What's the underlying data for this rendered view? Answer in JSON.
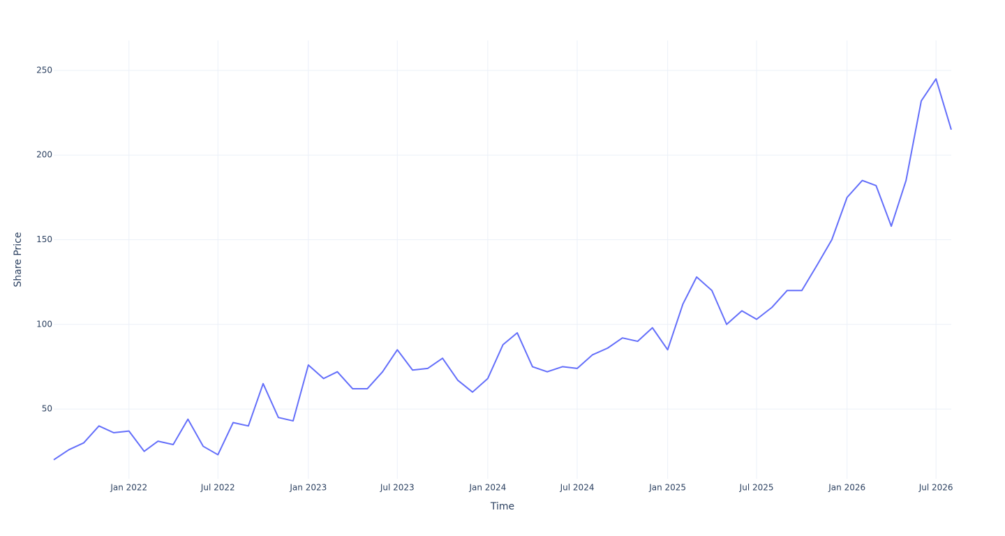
{
  "chart_data": {
    "type": "line",
    "xlabel": "Time",
    "ylabel": "Share Price",
    "x": [
      "2021-08",
      "2021-09",
      "2021-10",
      "2021-11",
      "2021-12",
      "2022-01",
      "2022-02",
      "2022-03",
      "2022-04",
      "2022-05",
      "2022-06",
      "2022-07",
      "2022-08",
      "2022-09",
      "2022-10",
      "2022-11",
      "2022-12",
      "2023-01",
      "2023-02",
      "2023-03",
      "2023-04",
      "2023-05",
      "2023-06",
      "2023-07",
      "2023-08",
      "2023-09",
      "2023-10",
      "2023-11",
      "2023-12",
      "2024-01",
      "2024-02",
      "2024-03",
      "2024-04",
      "2024-05",
      "2024-06",
      "2024-07",
      "2024-08",
      "2024-09",
      "2024-10",
      "2024-11",
      "2024-12",
      "2025-01",
      "2025-02",
      "2025-03",
      "2025-04",
      "2025-05",
      "2025-06",
      "2025-07",
      "2025-08",
      "2025-09",
      "2025-10",
      "2025-11",
      "2025-12",
      "2026-01",
      "2026-02",
      "2026-03",
      "2026-04",
      "2026-05",
      "2026-06",
      "2026-07",
      "2026-08"
    ],
    "series": [
      {
        "color": "#636efa",
        "values": [
          20,
          26,
          30,
          40,
          36,
          37,
          25,
          31,
          29,
          44,
          28,
          23,
          42,
          40,
          65,
          45,
          43,
          76,
          68,
          72,
          62,
          62,
          72,
          85,
          73,
          74,
          80,
          67,
          60,
          68,
          88,
          95,
          75,
          72,
          75,
          74,
          82,
          86,
          92,
          90,
          98,
          85,
          112,
          128,
          120,
          100,
          108,
          103,
          110,
          120,
          120,
          135,
          150,
          175,
          185,
          182,
          158,
          185,
          232,
          245,
          215
        ]
      }
    ],
    "xlim": [
      "2021-08",
      "2026-08"
    ],
    "xticks": [
      {
        "value": "2022-01",
        "label": "Jan 2022"
      },
      {
        "value": "2022-07",
        "label": "Jul 2022"
      },
      {
        "value": "2023-01",
        "label": "Jan 2023"
      },
      {
        "value": "2023-07",
        "label": "Jul 2023"
      },
      {
        "value": "2024-01",
        "label": "Jan 2024"
      },
      {
        "value": "2024-07",
        "label": "Jul 2024"
      },
      {
        "value": "2025-01",
        "label": "Jan 2025"
      },
      {
        "value": "2025-07",
        "label": "Jul 2025"
      },
      {
        "value": "2026-01",
        "label": "Jan 2026"
      },
      {
        "value": "2026-07",
        "label": "Jul 2026"
      }
    ],
    "ylim": [
      8.8,
      267.7
    ],
    "yticks": [
      50,
      100,
      150,
      200,
      250
    ],
    "grid": true
  }
}
